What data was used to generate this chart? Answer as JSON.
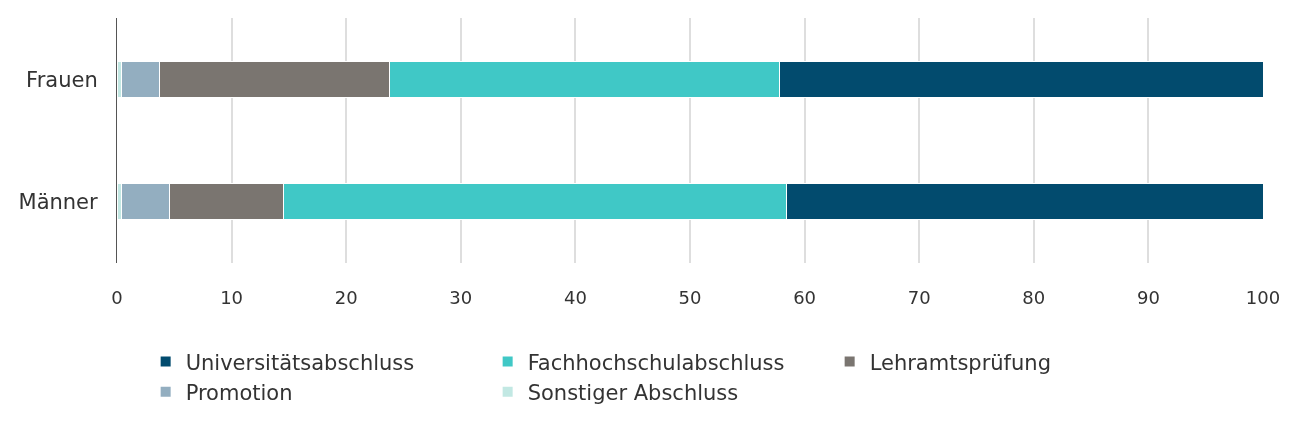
{
  "chart_data": {
    "type": "bar",
    "orientation": "horizontal",
    "stacked": true,
    "categories": [
      "Frauen",
      "Männer"
    ],
    "series": [
      {
        "name": "Sonstiger Abschluss",
        "color": "#c2e8e3",
        "values": [
          0.4,
          0.4
        ]
      },
      {
        "name": "Promotion",
        "color": "#93aec0",
        "values": [
          3.3,
          4.2
        ]
      },
      {
        "name": "Lehramtsprüfung",
        "color": "#7a7570",
        "values": [
          20.1,
          9.9
        ]
      },
      {
        "name": "Fachhochschulabschluss",
        "color": "#40c8c6",
        "values": [
          34.0,
          43.9
        ]
      },
      {
        "name": "Universitätsabschluss",
        "color": "#024b6e",
        "values": [
          42.2,
          41.6
        ]
      }
    ],
    "xlim": [
      0,
      100
    ],
    "xticks": [
      0,
      10,
      20,
      30,
      40,
      50,
      60,
      70,
      80,
      90,
      100
    ],
    "grid": "x",
    "legend": "bottom"
  }
}
